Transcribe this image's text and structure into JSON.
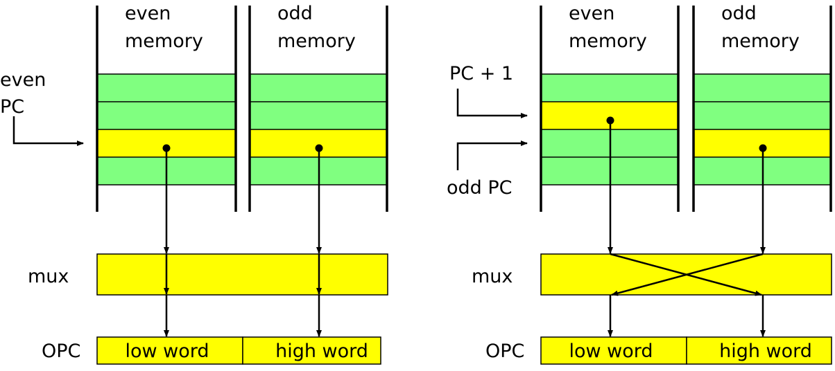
{
  "colors": {
    "memory_row": "#80ff80",
    "selected_row": "#ffff00",
    "mux": "#ffff00",
    "opc": "#ffff00",
    "line": "#000000"
  },
  "left": {
    "even_memory_label": [
      "even",
      "memory"
    ],
    "odd_memory_label": [
      "odd",
      "memory"
    ],
    "pc_label": [
      "even",
      "PC"
    ],
    "mux_label": "mux",
    "opc_label": "OPC",
    "opc_low": "low word",
    "opc_high": "high word",
    "selected_row_even": 2,
    "selected_row_odd": 2,
    "routing": "straight"
  },
  "right": {
    "even_memory_label": [
      "even",
      "memory"
    ],
    "odd_memory_label": [
      "odd",
      "memory"
    ],
    "pc_plus_label": "PC + 1",
    "odd_pc_label": "odd PC",
    "mux_label": "mux",
    "opc_label": "OPC",
    "opc_low": "low word",
    "opc_high": "high word",
    "selected_row_even": 1,
    "selected_row_odd": 2,
    "routing": "crossed"
  }
}
